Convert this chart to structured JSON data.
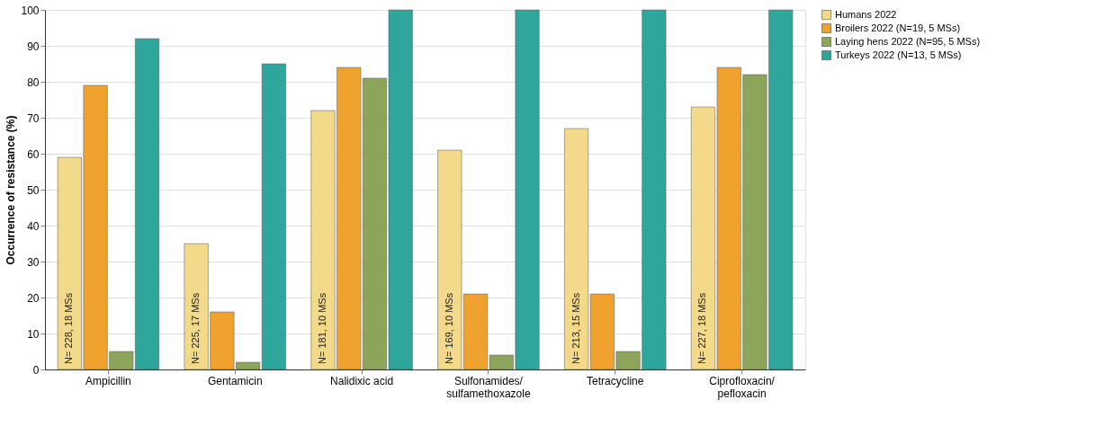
{
  "chart_data": {
    "type": "bar",
    "ylabel": "Occurrence of resistance (%)",
    "categories": [
      "Ampicillin",
      "Gentamicin",
      "Nalidixic acid",
      "Sulfonamides/\nsulfamethoxazole",
      "Tetracycline",
      "Ciprofloxacin/\npefloxacin"
    ],
    "series": [
      {
        "name": "Humans 2022",
        "color": "#f3d98a",
        "values": [
          59,
          35,
          72,
          61,
          67,
          73
        ]
      },
      {
        "name": "Broilers 2022 (N=19, 5 MSs)",
        "color": "#f0a22e",
        "values": [
          79,
          16,
          84,
          21,
          21,
          84
        ]
      },
      {
        "name": "Laying hens 2022 (N=95, 5 MSs)",
        "color": "#8da55a",
        "values": [
          5,
          2,
          81,
          4,
          5,
          82
        ]
      },
      {
        "name": "Turkeys 2022 (N=13, 5 MSs)",
        "color": "#2ea69c",
        "values": [
          92,
          85,
          100,
          100,
          100,
          100
        ]
      }
    ],
    "annotations": [
      "N= 228, 18 MSs",
      "N= 225, 17 MSs",
      "N= 181, 10 MSs",
      "N= 169, 10 MSs",
      "N= 213, 15 MSs",
      "N= 227, 18 MSs"
    ],
    "ylim": [
      0,
      100
    ],
    "yticks": [
      0,
      10,
      20,
      30,
      40,
      50,
      60,
      70,
      80,
      90,
      100
    ],
    "grid": "y",
    "legend": "right"
  }
}
